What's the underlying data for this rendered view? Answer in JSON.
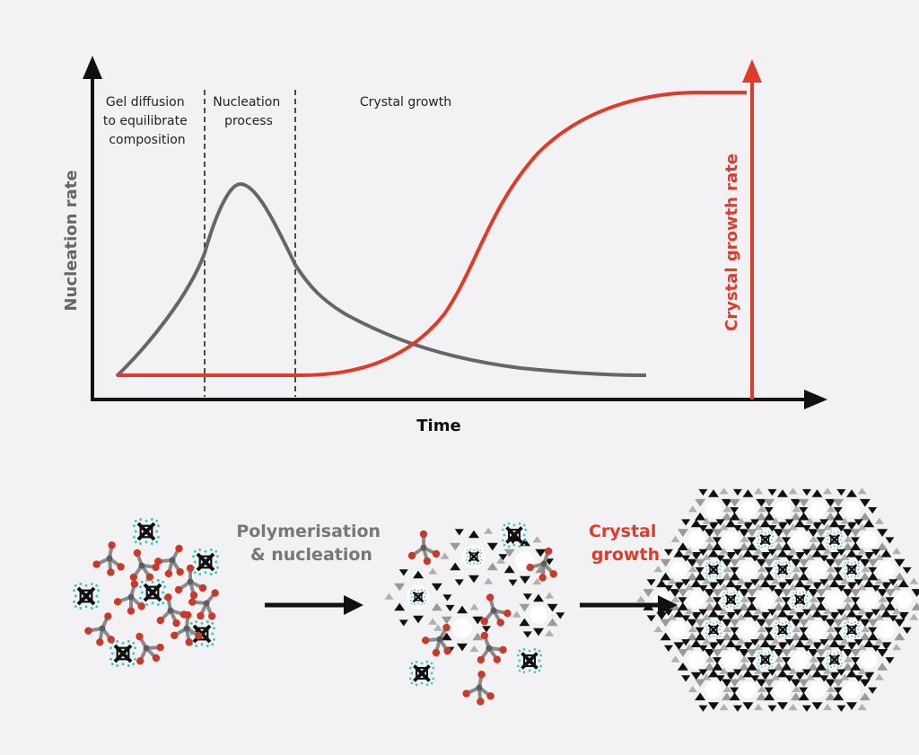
{
  "colors": {
    "background": "#f2f2f4",
    "axis": "#111111",
    "nucleation": "#666666",
    "growth": "#e03a2b",
    "bond": "#8a8a8a",
    "oxygen": "#c93a28",
    "template": "#3ec6c0"
  },
  "chart": {
    "x_axis_label": "Time",
    "left_axis_label": "Nucleation rate",
    "right_axis_label": "Crystal growth rate",
    "phases": [
      {
        "lines": [
          "Gel diffusion",
          "to equilibrate",
          "composition"
        ]
      },
      {
        "lines": [
          "Nucleation",
          "process"
        ]
      },
      {
        "lines": [
          "Crystal growth"
        ]
      }
    ]
  },
  "process": {
    "step1_label": [
      "Polymerisation",
      "& nucleation"
    ],
    "step2_label": [
      "Crystal",
      "growth"
    ]
  }
}
